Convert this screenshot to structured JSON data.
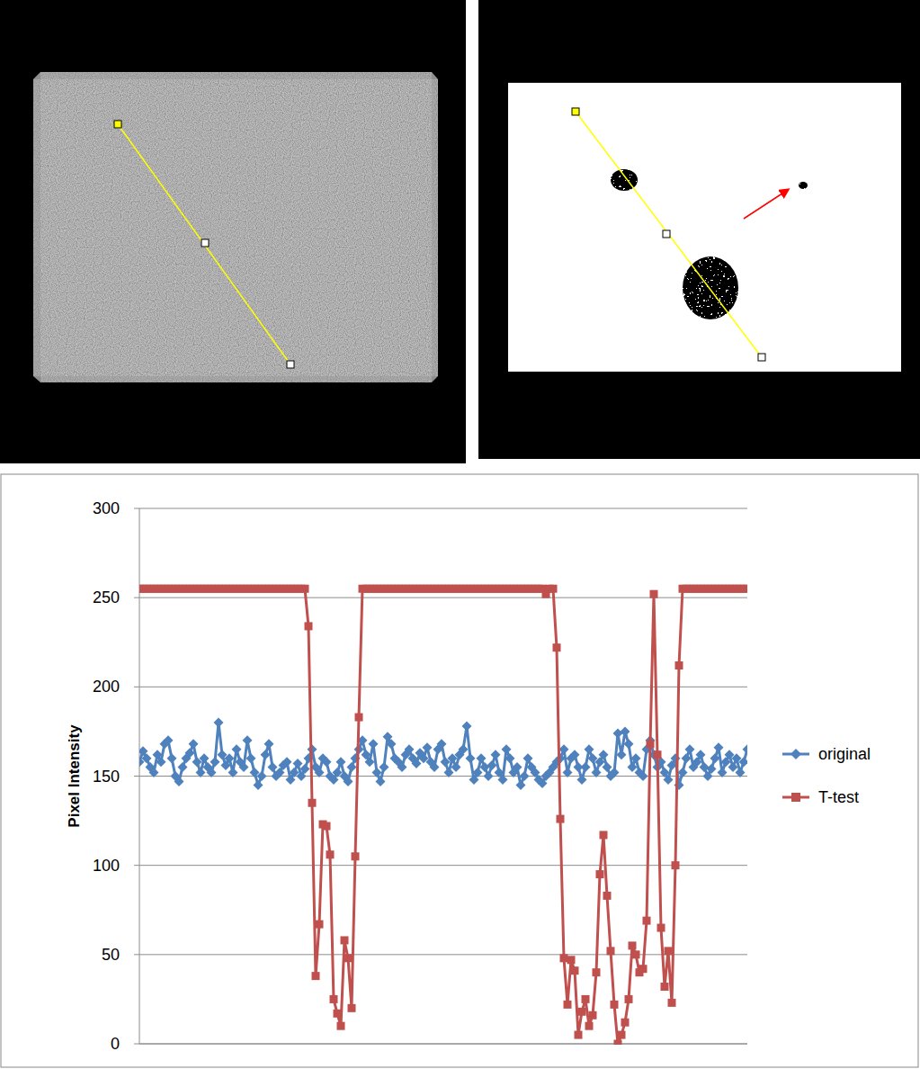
{
  "chart_data": {
    "type": "line",
    "ylabel": "Pixel Intensity",
    "ylim": [
      0,
      300
    ],
    "yticks": [
      0,
      50,
      100,
      150,
      200,
      250,
      300
    ],
    "grid": true,
    "legend": "right",
    "tick_labels": "y",
    "marker": "diamond",
    "series": [
      {
        "name": "original",
        "color": "#4F81BD",
        "marker": "diamond",
        "line_style": "solid",
        "values": [
          158,
          164,
          160,
          155,
          152,
          162,
          158,
          168,
          170,
          160,
          150,
          147,
          155,
          160,
          163,
          168,
          158,
          152,
          160,
          155,
          152,
          158,
          180,
          162,
          156,
          160,
          152,
          165,
          158,
          155,
          170,
          160,
          152,
          145,
          150,
          162,
          168,
          155,
          150,
          152,
          156,
          158,
          148,
          152,
          157,
          150,
          154,
          160,
          165,
          155,
          152,
          160,
          158,
          150,
          148,
          152,
          158,
          150,
          147,
          155,
          160,
          165,
          170,
          162,
          158,
          168,
          152,
          147,
          155,
          172,
          168,
          160,
          158,
          155,
          162,
          165,
          160,
          157,
          163,
          160,
          166,
          158,
          155,
          165,
          168,
          158,
          152,
          160,
          155,
          162,
          165,
          178,
          160,
          148,
          152,
          160,
          155,
          150,
          156,
          162,
          152,
          148,
          165,
          160,
          152,
          155,
          145,
          150,
          160,
          155,
          152,
          148,
          146,
          150,
          152,
          155,
          158,
          160,
          165,
          152,
          160,
          162,
          155,
          148,
          155,
          165,
          160,
          152,
          158,
          162,
          155,
          150,
          152,
          174,
          162,
          175,
          168,
          155,
          160,
          152,
          150,
          165,
          170,
          162,
          155,
          158,
          152,
          148,
          156,
          160,
          145,
          152,
          160,
          165,
          155,
          158,
          162,
          155,
          150,
          154,
          160,
          166,
          152,
          158,
          162,
          155,
          160,
          152,
          158,
          165
        ]
      },
      {
        "name": "T-test",
        "color": "#C0504D",
        "marker": "square",
        "line_style": "solid",
        "values": [
          255,
          255,
          255,
          255,
          255,
          255,
          255,
          255,
          255,
          255,
          255,
          255,
          255,
          255,
          255,
          255,
          255,
          255,
          255,
          255,
          255,
          255,
          255,
          255,
          255,
          255,
          255,
          255,
          255,
          255,
          255,
          255,
          255,
          255,
          255,
          255,
          255,
          255,
          255,
          255,
          255,
          255,
          255,
          255,
          255,
          255,
          255,
          234,
          135,
          38,
          67,
          123,
          122,
          106,
          25,
          17,
          10,
          58,
          48,
          20,
          105,
          183,
          255,
          255,
          255,
          255,
          255,
          255,
          255,
          255,
          255,
          255,
          255,
          255,
          255,
          255,
          255,
          255,
          255,
          255,
          255,
          255,
          255,
          255,
          255,
          255,
          255,
          255,
          255,
          255,
          255,
          255,
          255,
          255,
          255,
          255,
          255,
          255,
          255,
          255,
          255,
          255,
          255,
          255,
          255,
          255,
          255,
          255,
          255,
          255,
          255,
          255,
          255,
          252,
          255,
          255,
          222,
          126,
          48,
          22,
          47,
          41,
          5,
          18,
          25,
          10,
          16,
          40,
          95,
          117,
          83,
          52,
          22,
          0,
          5,
          12,
          25,
          55,
          50,
          40,
          42,
          69,
          168,
          252,
          162,
          65,
          32,
          52,
          23,
          100,
          212,
          255,
          255,
          255,
          255,
          255,
          255,
          255,
          255,
          255,
          255,
          255,
          255,
          255,
          255,
          255,
          255,
          255,
          255,
          255
        ]
      }
    ]
  }
}
